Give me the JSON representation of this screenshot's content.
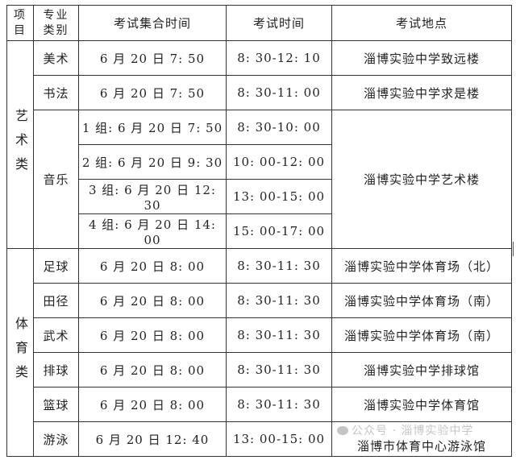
{
  "headers": {
    "project": "项目",
    "category": "专业类别",
    "assembly_time": "考试集合时间",
    "exam_time": "考试时间",
    "location": "考试地点"
  },
  "groups": [
    {
      "name": "艺术类",
      "rows": [
        {
          "category": "美术",
          "assembly": "6 月 20 日 7: 50",
          "exam": "8: 30-12: 10",
          "location": "淄博实验中学致远楼"
        },
        {
          "category": "书法",
          "assembly": "6 月 20 日 7: 50",
          "exam": "8: 30-11: 00",
          "location": "淄博实验中学求是楼"
        },
        {
          "category": "音乐",
          "assembly": "1 组: 6 月 20 日 7: 50",
          "exam": "8: 30-10: 00",
          "location": "淄博实验中学艺术楼"
        },
        {
          "assembly": "2 组: 6 月 20 日 9: 30",
          "exam": "10: 00-12: 00"
        },
        {
          "assembly": "3 组: 6 月 20 日 12: 30",
          "exam": "13: 00-15: 00"
        },
        {
          "assembly": "4 组: 6 月 20 日 14: 00",
          "exam": "15: 00-17: 00"
        }
      ]
    },
    {
      "name": "体育类",
      "rows": [
        {
          "category": "足球",
          "assembly": "6 月 20 日 8: 00",
          "exam": "8: 30-11: 30",
          "location": "淄博实验中学体育场（北）"
        },
        {
          "category": "田径",
          "assembly": "6 月 20 日 8: 00",
          "exam": "8: 30-11: 30",
          "location": "淄博实验中学体育场（南）"
        },
        {
          "category": "武术",
          "assembly": "6 月 20 日 8: 00",
          "exam": "8: 30-11: 30",
          "location": "淄博实验中学体育场（南）"
        },
        {
          "category": "排球",
          "assembly": "6 月 20 日 8: 00",
          "exam": "8: 30-11: 30",
          "location": "淄博实验中学排球馆"
        },
        {
          "category": "篮球",
          "assembly": "6 月 20 日 8: 00",
          "exam": "8: 30-11: 30",
          "location": "淄博实验中学体育馆"
        },
        {
          "category": "游泳",
          "assembly": "6 月 20 日 12: 40",
          "exam": "13: 00-15: 00",
          "location": "淄博市体育中心游泳馆"
        }
      ]
    }
  ],
  "watermark": "公众号 · 淄博实验中学"
}
